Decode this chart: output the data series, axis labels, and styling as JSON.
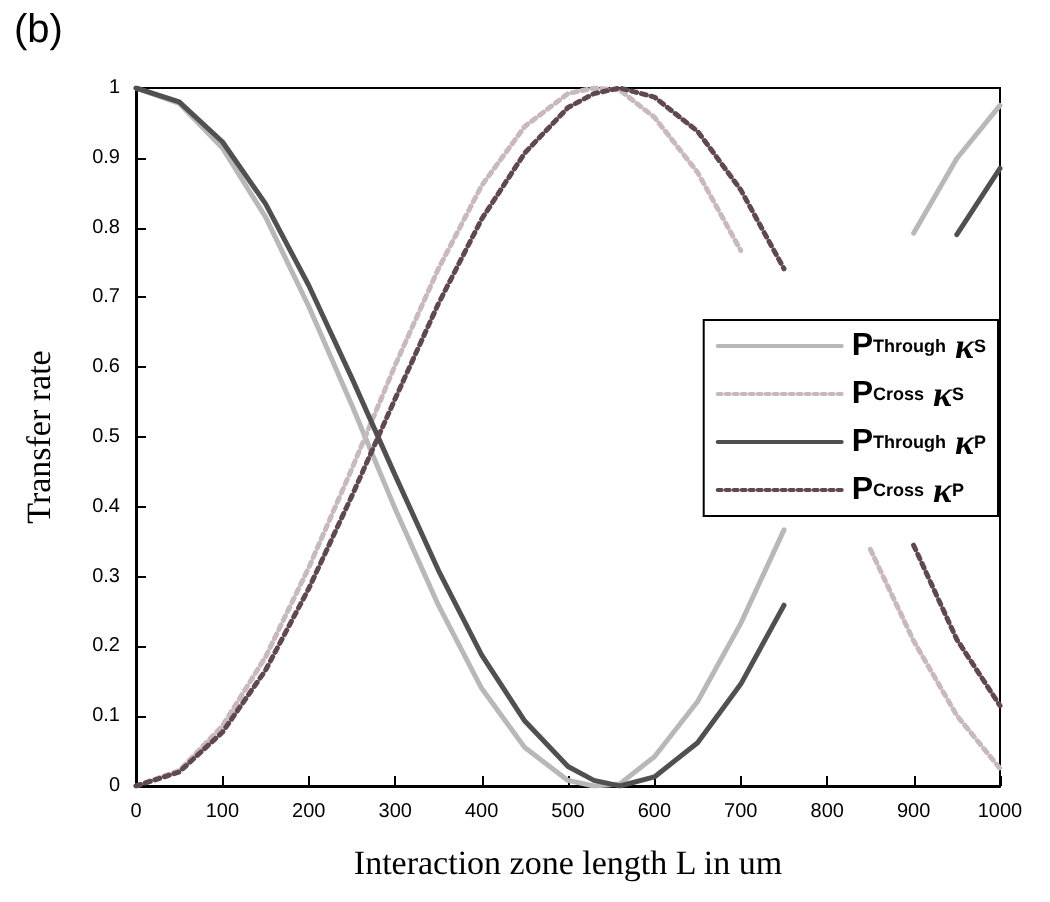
{
  "chart_data": {
    "type": "line",
    "title": "(b)",
    "xlabel": "Interaction zone length L in um",
    "ylabel": "Transfer rate",
    "x": [
      0,
      50,
      100,
      150,
      200,
      250,
      300,
      350,
      400,
      450,
      500,
      530,
      560,
      600,
      650,
      700,
      750,
      800,
      850,
      900,
      950,
      1000
    ],
    "series": [
      {
        "name": "P$_{Through}$ κ$_{S}$",
        "color": "#b8b8b8",
        "line_style": "solid",
        "values": [
          1,
          0.978,
          0.914,
          0.815,
          0.687,
          0.545,
          0.397,
          0.259,
          0.14,
          0.055,
          0.008,
          0,
          0.003,
          0.042,
          0.121,
          0.233,
          0.367,
          null,
          null,
          0.792,
          0.899,
          0.975
        ]
      },
      {
        "name": "P$_{Cross}$ κ$_{S}$",
        "color": "#c8b8c0",
        "line_style": "dotted",
        "values": [
          0,
          0.022,
          0.086,
          0.185,
          0.313,
          0.455,
          0.603,
          0.741,
          0.86,
          0.945,
          0.992,
          1,
          0.997,
          0.958,
          0.879,
          0.767,
          null,
          null,
          0.339,
          0.208,
          0.101,
          0.025
        ]
      },
      {
        "name": "P$_{Through}$ κ$_{P}$",
        "color": "#505050",
        "line_style": "solid",
        "values": [
          1,
          0.98,
          0.923,
          0.834,
          0.717,
          0.584,
          0.445,
          0.309,
          0.188,
          0.093,
          0.028,
          0.008,
          0,
          0.013,
          0.062,
          0.146,
          0.259,
          null,
          null,
          null,
          0.79,
          0.885
        ]
      },
      {
        "name": "P$_{Cross}$ κ$_{P}$",
        "color": "#604850",
        "line_style": "dotted",
        "values": [
          0,
          0.02,
          0.077,
          0.166,
          0.283,
          0.416,
          0.555,
          0.691,
          0.812,
          0.907,
          0.972,
          0.992,
          1,
          0.987,
          0.938,
          0.854,
          0.741,
          null,
          null,
          0.345,
          0.21,
          0.115
        ]
      }
    ],
    "xlim": [
      0,
      1000
    ],
    "xticks": [
      0,
      100,
      200,
      300,
      400,
      500,
      600,
      700,
      800,
      900,
      1000
    ],
    "ylim": [
      0,
      1
    ],
    "yticks": [
      0,
      0.1,
      0.2,
      0.3,
      0.4,
      0.5,
      0.6,
      0.7,
      0.8,
      0.9,
      1
    ],
    "grid": false,
    "legend": "right",
    "marker": "none"
  }
}
